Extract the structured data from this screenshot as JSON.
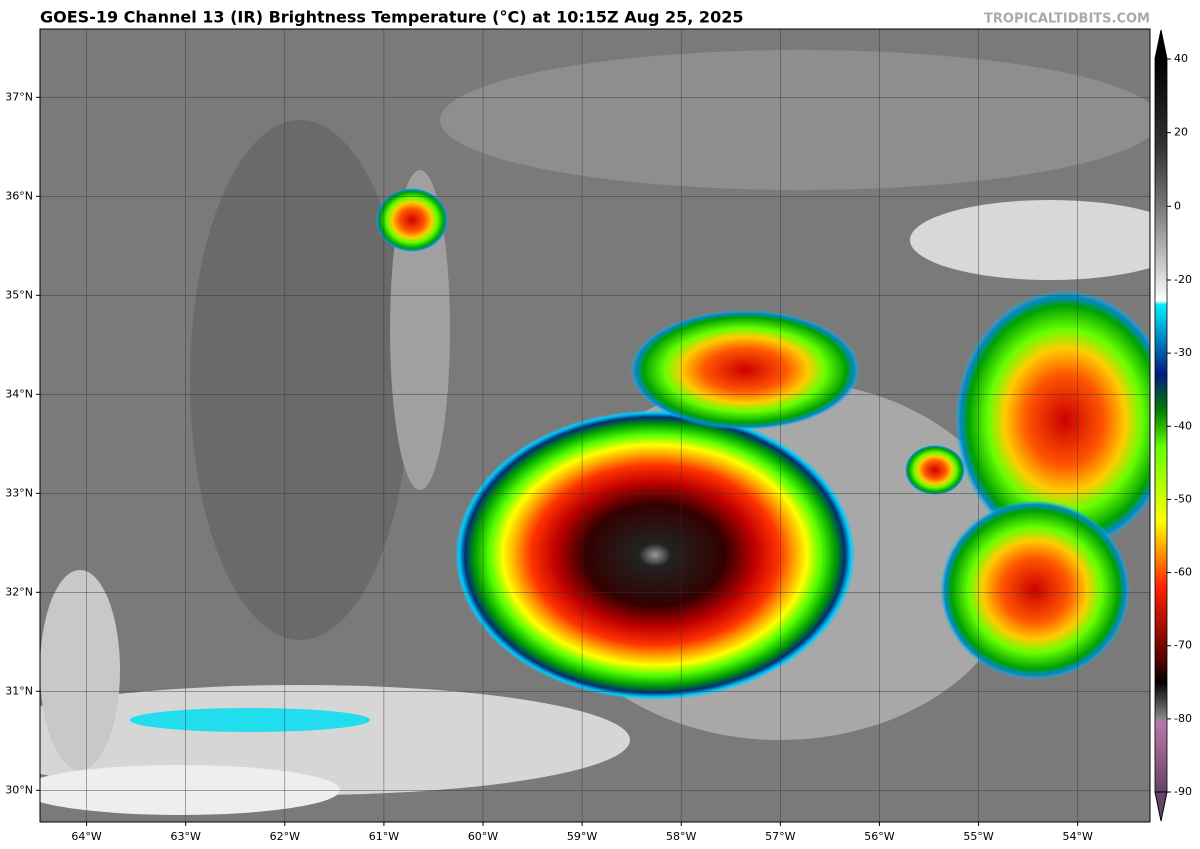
{
  "chart_data": {
    "type": "map",
    "title": "GOES-19 Channel 13 (IR) Brightness Temperature (°C) at 10:15Z Aug 25, 2025",
    "watermark": "TROPICALTIDBITS.COM",
    "xlim": [
      -64.47,
      -53.27
    ],
    "ylim": [
      29.68,
      37.69
    ],
    "xticks": [
      {
        "value": -64,
        "label": "64°W"
      },
      {
        "value": -63,
        "label": "63°W"
      },
      {
        "value": -62,
        "label": "62°W"
      },
      {
        "value": -61,
        "label": "61°W"
      },
      {
        "value": -60,
        "label": "60°W"
      },
      {
        "value": -59,
        "label": "59°W"
      },
      {
        "value": -58,
        "label": "58°W"
      },
      {
        "value": -57,
        "label": "57°W"
      },
      {
        "value": -56,
        "label": "56°W"
      },
      {
        "value": -55,
        "label": "55°W"
      },
      {
        "value": -54,
        "label": "54°W"
      }
    ],
    "yticks": [
      {
        "value": 30,
        "label": "30°N"
      },
      {
        "value": 31,
        "label": "31°N"
      },
      {
        "value": 32,
        "label": "32°N"
      },
      {
        "value": 33,
        "label": "33°N"
      },
      {
        "value": 34,
        "label": "34°N"
      },
      {
        "value": 35,
        "label": "35°N"
      },
      {
        "value": 36,
        "label": "36°N"
      },
      {
        "value": 37,
        "label": "37°N"
      }
    ],
    "grid": true,
    "colorbar_ticks": [
      40,
      20,
      0,
      -20,
      -30,
      -40,
      -50,
      -60,
      -70,
      -80,
      -90
    ]
  }
}
